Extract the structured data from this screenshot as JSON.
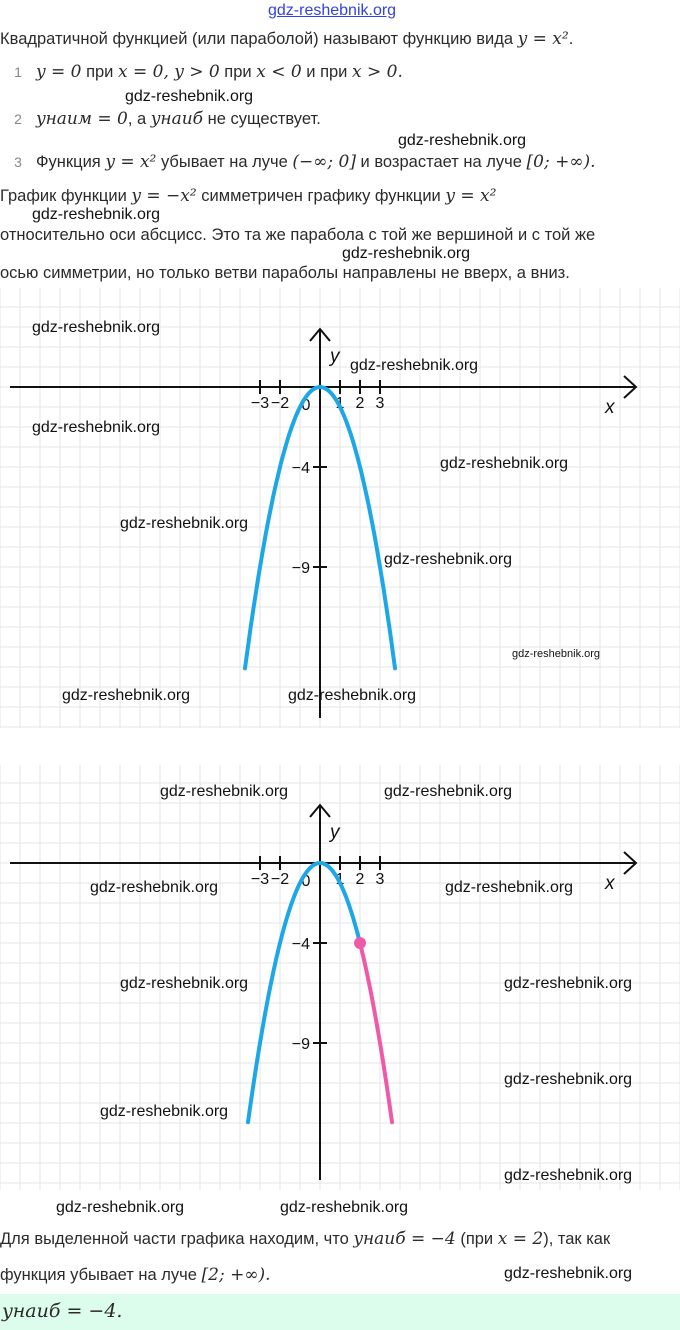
{
  "top_watermark": "gdz-reshebnik.org",
  "intro": [
    {
      "t": "Квадратичной функцией (или параболой) называют функцию вида "
    },
    {
      "t": "y = x²",
      "m": true
    },
    {
      "t": "."
    }
  ],
  "list": [
    {
      "n": "1",
      "segs": [
        {
          "t": "y = 0",
          "m": true
        },
        {
          "t": " при "
        },
        {
          "t": "x = 0, y > 0",
          "m": true
        },
        {
          "t": " при "
        },
        {
          "t": "x < 0",
          "m": true
        },
        {
          "t": " и при "
        },
        {
          "t": "x > 0.",
          "m": true
        }
      ]
    },
    {
      "n": "2",
      "segs": [
        {
          "t": "yнаим = 0",
          "m": true
        },
        {
          "t": ", а "
        },
        {
          "t": "yнаиб",
          "m": true
        },
        {
          "t": " не существует."
        }
      ]
    },
    {
      "n": "3",
      "segs": [
        {
          "t": "Функция "
        },
        {
          "t": "y = x²",
          "m": true
        },
        {
          "t": " убывает на луче "
        },
        {
          "t": "(−∞;  0]",
          "m": true
        },
        {
          "t": " и возрастает на луче "
        },
        {
          "t": "[0;  +∞).",
          "m": true
        }
      ]
    }
  ],
  "para": [
    [
      {
        "t": "График функции "
      },
      {
        "t": "y = −x²",
        "m": true
      },
      {
        "t": " симметричен графику функции "
      },
      {
        "t": "y = x²",
        "m": true
      }
    ],
    [
      {
        "t": "относительно оси абсцисс. Это та же парабола с той же вершиной и с той же"
      }
    ],
    [
      {
        "t": "осью симметрии, но только ветви параболы направлены не вверх, а вниз."
      }
    ]
  ],
  "conclusion": [
    [
      {
        "t": "Для выделенной части графика находим, что "
      },
      {
        "t": "yнаиб = −4",
        "m": true
      },
      {
        "t": " (при "
      },
      {
        "t": "x = 2",
        "m": true
      },
      {
        "t": "), так как"
      }
    ],
    [
      {
        "t": "функция убывает на луче "
      },
      {
        "t": "[2;  +∞).",
        "m": true
      }
    ]
  ],
  "answer": "yнаиб = −4.",
  "colors": {
    "curve": "#1ea7e6",
    "highlight": "#ee5aa8",
    "grid": "#e6e6e6",
    "axis": "#111111",
    "answer_bg": "#dcfcec"
  },
  "chart_data": [
    {
      "type": "line",
      "function": "y = -x^2",
      "axis_labels": {
        "x": "x",
        "y": "y"
      },
      "x_ticks": [
        "−3",
        "−2",
        "1",
        "2",
        "3"
      ],
      "origin_label": "0",
      "y_ticks": [
        "−4",
        "−9"
      ],
      "series": [
        {
          "x_range": [
            -3.75,
            3.75
          ],
          "color": "#1ea7e6"
        }
      ],
      "grid": true
    },
    {
      "type": "line",
      "function": "y = -x^2",
      "axis_labels": {
        "x": "x",
        "y": "y"
      },
      "x_ticks": [
        "−3",
        "−2",
        "1",
        "2",
        "3"
      ],
      "origin_label": "0",
      "y_ticks": [
        "−4",
        "−9"
      ],
      "series": [
        {
          "x_range": [
            -3.6,
            2
          ],
          "color": "#1ea7e6"
        },
        {
          "x_range": [
            2,
            3.6
          ],
          "color": "#ee5aa8"
        }
      ],
      "highlight_point": {
        "x": 2,
        "y": -4
      },
      "grid": true
    }
  ],
  "watermarks": [
    "gdz-reshebnik.org"
  ]
}
